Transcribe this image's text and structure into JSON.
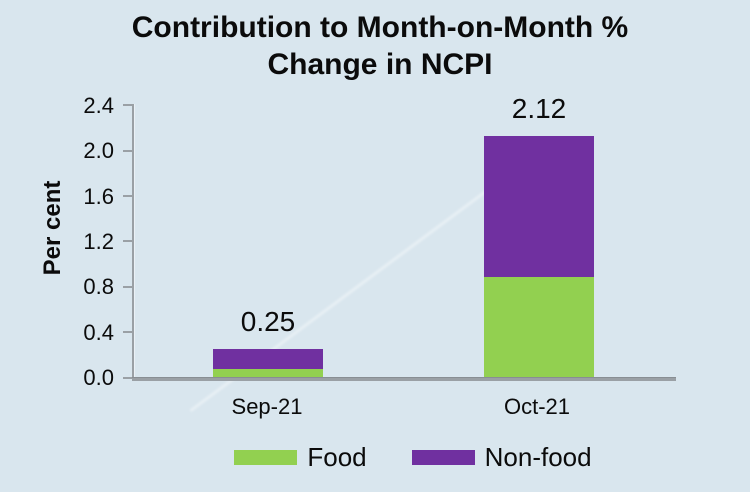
{
  "title": "Contribution to Month-on-Month % Change in NCPI",
  "colors": {
    "background": "#d9e6ee",
    "food": "#92d050",
    "non_food": "#7030a0",
    "axis": "#9aa0a5",
    "text": "#0b0b0b"
  },
  "y_axis": {
    "label": "Per cent",
    "ticks": [
      "2.4",
      "2.0",
      "1.6",
      "1.2",
      "0.8",
      "0.4",
      "0.0"
    ]
  },
  "legend": [
    {
      "label": "Food",
      "color": "#92d050"
    },
    {
      "label": "Non-food",
      "color": "#7030a0"
    }
  ],
  "chart_data": {
    "type": "bar",
    "stacked": true,
    "categories": [
      "Sep-21",
      "Oct-21"
    ],
    "series": [
      {
        "name": "Food",
        "color": "#92d050",
        "values": [
          0.07,
          0.88
        ]
      },
      {
        "name": "Non-food",
        "color": "#7030a0",
        "values": [
          0.18,
          1.24
        ]
      }
    ],
    "totals": [
      "0.25",
      "2.12"
    ],
    "title": "Contribution to Month-on-Month % Change in NCPI",
    "xlabel": "",
    "ylabel": "Per cent",
    "ylim": [
      0,
      2.4
    ],
    "grid": false,
    "legend_position": "bottom"
  }
}
